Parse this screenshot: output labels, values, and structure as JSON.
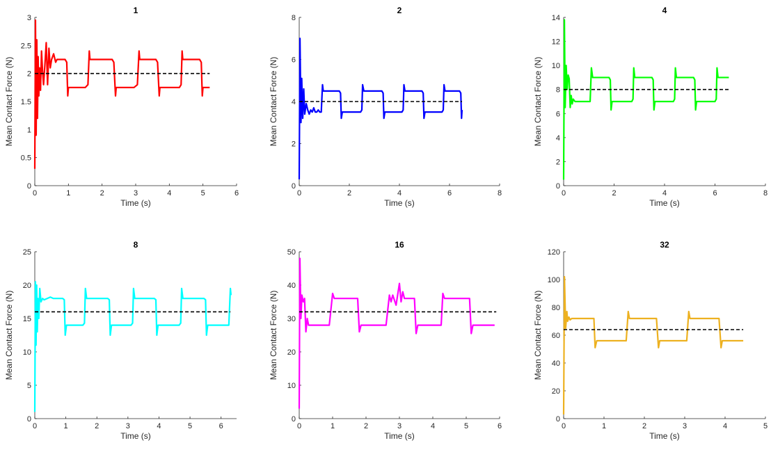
{
  "chart_data": [
    {
      "type": "line",
      "title": "1",
      "xlabel": "Time (s)",
      "ylabel": "Mean Contact Force (N)",
      "xlim": [
        0,
        6
      ],
      "ylim": [
        0,
        3
      ],
      "xticks": [
        "0",
        "1",
        "2",
        "3",
        "4",
        "5",
        "6"
      ],
      "yticks": [
        "0",
        "0.5",
        "1",
        "1.5",
        "2",
        "2.5",
        "3"
      ],
      "color": "#ff0000",
      "reference": {
        "y": 2,
        "x": [
          0,
          5.2
        ],
        "style": "dashed",
        "color": "#000000"
      },
      "series": [
        {
          "x": [
            0,
            0.02,
            0.04,
            0.06,
            0.08,
            0.1,
            0.12,
            0.14,
            0.17,
            0.2,
            0.23,
            0.26,
            0.3,
            0.34,
            0.38,
            0.42,
            0.46,
            0.5,
            0.56,
            0.62,
            0.66,
            0.7,
            0.9,
            0.95,
            0.98,
            1.0,
            1.05,
            1.1,
            1.5,
            1.58,
            1.62,
            1.64,
            1.7,
            1.75,
            2.3,
            2.35,
            2.4,
            2.42,
            2.48,
            2.55,
            2.95,
            3.05,
            3.1,
            3.12,
            3.18,
            3.25,
            3.6,
            3.65,
            3.7,
            3.72,
            3.78,
            3.85,
            4.3,
            4.35,
            4.38,
            4.4,
            4.46,
            4.55,
            4.9,
            4.95,
            4.98,
            5.0,
            5.05,
            5.2
          ],
          "y": [
            0.3,
            2.95,
            0.9,
            2.6,
            1.2,
            2.3,
            1.6,
            2.1,
            1.7,
            2.4,
            2.05,
            1.8,
            2.15,
            2.55,
            1.8,
            2.45,
            2.1,
            2.25,
            2.35,
            2.2,
            2.25,
            2.25,
            2.25,
            2.2,
            1.6,
            1.75,
            1.75,
            1.75,
            1.75,
            1.8,
            2.4,
            2.25,
            2.25,
            2.25,
            2.25,
            2.2,
            1.6,
            1.75,
            1.75,
            1.75,
            1.75,
            1.8,
            2.4,
            2.25,
            2.25,
            2.25,
            2.25,
            2.2,
            1.6,
            1.75,
            1.75,
            1.75,
            1.75,
            1.8,
            2.4,
            2.25,
            2.25,
            2.25,
            2.25,
            2.2,
            1.6,
            1.75,
            1.75,
            1.75
          ]
        }
      ]
    },
    {
      "type": "line",
      "title": "2",
      "xlabel": "Time (s)",
      "ylabel": "Mean Contact Force (N)",
      "xlim": [
        0,
        8
      ],
      "ylim": [
        0,
        8
      ],
      "xticks": [
        "0",
        "2",
        "4",
        "6",
        "8"
      ],
      "yticks": [
        "0",
        "2",
        "4",
        "6",
        "8"
      ],
      "color": "#0000ff",
      "reference": {
        "y": 4,
        "x": [
          0,
          6.5
        ],
        "style": "dashed",
        "color": "#000000"
      },
      "series": [
        {
          "x": [
            0,
            0.03,
            0.07,
            0.1,
            0.14,
            0.18,
            0.22,
            0.28,
            0.34,
            0.4,
            0.46,
            0.52,
            0.58,
            0.64,
            0.7,
            0.76,
            0.82,
            0.88,
            0.93,
            0.96,
            1.0,
            1.6,
            1.65,
            1.68,
            1.72,
            2.45,
            2.5,
            2.53,
            2.58,
            3.3,
            3.35,
            3.38,
            3.42,
            4.1,
            4.15,
            4.18,
            4.22,
            4.9,
            4.95,
            4.98,
            5.02,
            5.7,
            5.75,
            5.78,
            5.82,
            6.4,
            6.45,
            6.48,
            6.5
          ],
          "y": [
            0.3,
            7.0,
            3.0,
            5.1,
            3.2,
            4.6,
            3.4,
            3.9,
            3.6,
            3.4,
            3.6,
            3.5,
            3.7,
            3.5,
            3.5,
            3.6,
            3.5,
            3.5,
            4.8,
            4.5,
            4.5,
            4.5,
            4.4,
            3.2,
            3.5,
            3.5,
            3.6,
            4.8,
            4.5,
            4.5,
            4.4,
            3.2,
            3.5,
            3.5,
            3.6,
            4.8,
            4.5,
            4.5,
            4.4,
            3.2,
            3.5,
            3.5,
            3.6,
            4.8,
            4.5,
            4.5,
            4.4,
            3.2,
            3.6
          ]
        }
      ]
    },
    {
      "type": "line",
      "title": "4",
      "xlabel": "Time (s)",
      "ylabel": "Mean Contact Force (N)",
      "xlim": [
        0,
        8
      ],
      "ylim": [
        0,
        14
      ],
      "xticks": [
        "0",
        "2",
        "4",
        "6",
        "8"
      ],
      "yticks": [
        "0",
        "2",
        "4",
        "6",
        "8",
        "10",
        "12",
        "14"
      ],
      "color": "#00ff00",
      "reference": {
        "y": 8,
        "x": [
          0,
          6.6
        ],
        "style": "dashed",
        "color": "#000000"
      },
      "series": [
        {
          "x": [
            0,
            0.03,
            0.06,
            0.1,
            0.14,
            0.18,
            0.22,
            0.26,
            0.3,
            0.34,
            0.38,
            0.45,
            0.55,
            0.7,
            0.9,
            1.05,
            1.1,
            1.15,
            1.2,
            1.8,
            1.85,
            1.88,
            1.92,
            2.7,
            2.75,
            2.78,
            2.82,
            3.5,
            3.55,
            3.58,
            3.62,
            4.35,
            4.4,
            4.43,
            4.47,
            5.15,
            5.2,
            5.23,
            5.27,
            6.0,
            6.05,
            6.08,
            6.12,
            6.55
          ],
          "y": [
            0.5,
            13.8,
            6.5,
            10.0,
            8.0,
            9.2,
            8.9,
            6.5,
            7.5,
            6.8,
            7.2,
            7.0,
            7.0,
            7.0,
            7.0,
            7.0,
            9.8,
            9.0,
            9.0,
            9.0,
            8.8,
            6.3,
            7.0,
            7.0,
            7.2,
            9.8,
            9.0,
            9.0,
            8.8,
            6.3,
            7.0,
            7.0,
            7.2,
            9.8,
            9.0,
            9.0,
            8.8,
            6.3,
            7.0,
            7.0,
            7.2,
            9.8,
            9.0,
            9.0
          ]
        }
      ]
    },
    {
      "type": "line",
      "title": "8",
      "xlabel": "Time (s)",
      "ylabel": "Mean Contact Force (N)",
      "xlim": [
        0,
        6.5
      ],
      "ylim": [
        0,
        25
      ],
      "xticks": [
        "0",
        "1",
        "2",
        "3",
        "4",
        "5",
        "6"
      ],
      "yticks": [
        "0",
        "5",
        "10",
        "15",
        "20",
        "25"
      ],
      "color": "#00ffff",
      "reference": {
        "y": 16,
        "x": [
          0,
          6.3
        ],
        "style": "dashed",
        "color": "#000000"
      },
      "series": [
        {
          "x": [
            0,
            0.02,
            0.04,
            0.06,
            0.08,
            0.1,
            0.13,
            0.16,
            0.2,
            0.25,
            0.3,
            0.4,
            0.5,
            0.6,
            0.9,
            0.95,
            0.98,
            1.02,
            1.55,
            1.6,
            1.63,
            1.67,
            2.35,
            2.4,
            2.43,
            2.47,
            3.1,
            3.15,
            3.18,
            3.22,
            3.85,
            3.9,
            3.93,
            3.97,
            4.65,
            4.7,
            4.73,
            4.77,
            5.45,
            5.5,
            5.53,
            5.57,
            6.25,
            6.3,
            6.32
          ],
          "y": [
            1.0,
            20.5,
            11.0,
            20.0,
            13.0,
            18.0,
            15.0,
            19.5,
            17.5,
            18.0,
            17.8,
            18.0,
            18.2,
            18.0,
            18.0,
            17.8,
            12.5,
            14.0,
            14.0,
            14.3,
            19.5,
            18.0,
            18.0,
            17.8,
            12.5,
            14.0,
            14.0,
            14.3,
            19.5,
            18.0,
            18.0,
            17.8,
            12.5,
            14.0,
            14.0,
            14.3,
            19.5,
            18.0,
            18.0,
            17.8,
            12.5,
            14.0,
            14.0,
            19.5,
            18.5
          ]
        }
      ]
    },
    {
      "type": "line",
      "title": "16",
      "xlabel": "Time (s)",
      "ylabel": "Mean Contact Force (N)",
      "xlim": [
        0,
        6
      ],
      "ylim": [
        0,
        50
      ],
      "xticks": [
        "0",
        "1",
        "2",
        "3",
        "4",
        "5",
        "6"
      ],
      "yticks": [
        "0",
        "10",
        "20",
        "30",
        "40",
        "50"
      ],
      "color": "#ff00ff",
      "reference": {
        "y": 32,
        "x": [
          0,
          5.9
        ],
        "style": "dashed",
        "color": "#000000"
      },
      "series": [
        {
          "x": [
            0,
            0.02,
            0.05,
            0.08,
            0.12,
            0.16,
            0.2,
            0.24,
            0.28,
            0.35,
            0.5,
            0.9,
            1.0,
            1.05,
            1.1,
            1.75,
            1.8,
            1.85,
            1.9,
            2.6,
            2.7,
            2.75,
            2.8,
            2.9,
            3.0,
            3.05,
            3.1,
            3.15,
            3.25,
            3.45,
            3.5,
            3.55,
            3.6,
            4.25,
            4.3,
            4.35,
            4.4,
            5.1,
            5.15,
            5.2,
            5.25,
            5.85
          ],
          "y": [
            3.0,
            48.0,
            30.0,
            37.0,
            35.0,
            36.0,
            26.0,
            30.0,
            28.0,
            28.0,
            28.0,
            28.0,
            37.5,
            36.0,
            36.0,
            36.0,
            26.0,
            28.0,
            28.0,
            28.0,
            37.0,
            35.0,
            37.0,
            34.0,
            40.5,
            35.0,
            38.0,
            36.0,
            36.0,
            36.0,
            25.5,
            28.0,
            28.0,
            28.0,
            37.5,
            36.0,
            36.0,
            36.0,
            25.5,
            28.0,
            28.0,
            28.0
          ]
        }
      ]
    },
    {
      "type": "line",
      "title": "32",
      "xlabel": "Time (s)",
      "ylabel": "Mean Contact Force (N)",
      "xlim": [
        0,
        5
      ],
      "ylim": [
        0,
        120
      ],
      "xticks": [
        "0",
        "1",
        "2",
        "3",
        "4",
        "5"
      ],
      "yticks": [
        "0",
        "20",
        "40",
        "60",
        "80",
        "100",
        "120"
      ],
      "color": "#edb120",
      "reference": {
        "y": 64,
        "x": [
          0,
          4.45
        ],
        "style": "dashed",
        "color": "#000000"
      },
      "series": [
        {
          "x": [
            0,
            0.02,
            0.05,
            0.08,
            0.1,
            0.13,
            0.16,
            0.2,
            0.3,
            0.5,
            0.75,
            0.78,
            0.82,
            0.86,
            1.55,
            1.6,
            1.63,
            1.67,
            2.3,
            2.35,
            2.38,
            2.42,
            3.05,
            3.1,
            3.13,
            3.17,
            3.85,
            3.9,
            3.93,
            3.97,
            4.45
          ],
          "y": [
            3.0,
            102.0,
            65.0,
            77.0,
            70.0,
            73.0,
            71.0,
            72.0,
            72.0,
            72.0,
            72.0,
            51.0,
            56.0,
            56.0,
            56.0,
            77.0,
            72.0,
            72.0,
            72.0,
            51.0,
            56.0,
            56.0,
            56.0,
            77.0,
            72.0,
            72.0,
            72.0,
            51.0,
            56.0,
            56.0,
            56.0
          ]
        }
      ]
    }
  ]
}
